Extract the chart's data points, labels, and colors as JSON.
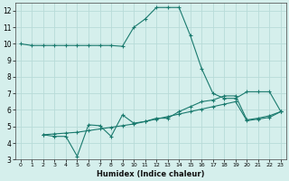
{
  "line1_x": [
    0,
    1,
    2,
    3,
    4,
    5,
    6,
    7,
    8,
    9,
    10,
    11,
    12,
    13,
    14,
    15,
    16,
    17,
    18,
    19,
    20,
    21,
    22,
    23
  ],
  "line1_y": [
    10.0,
    9.9,
    9.9,
    9.9,
    9.9,
    9.9,
    9.9,
    9.9,
    9.9,
    9.85,
    11.0,
    11.5,
    12.2,
    12.2,
    12.2,
    10.5,
    8.5,
    7.0,
    6.7,
    6.7,
    7.1,
    7.1,
    7.1,
    5.9
  ],
  "line2_x": [
    2,
    3,
    4,
    5,
    6,
    7,
    8,
    9,
    10,
    11,
    12,
    13,
    14,
    15,
    16,
    17,
    18,
    19,
    20,
    21,
    22,
    23
  ],
  "line2_y": [
    4.5,
    4.4,
    4.4,
    3.2,
    5.1,
    5.05,
    4.4,
    5.7,
    5.2,
    5.3,
    5.5,
    5.5,
    5.9,
    6.2,
    6.5,
    6.6,
    6.85,
    6.85,
    5.4,
    5.5,
    5.65,
    5.9
  ],
  "line3_x": [
    2,
    3,
    4,
    5,
    6,
    7,
    8,
    9,
    10,
    11,
    12,
    13,
    14,
    15,
    16,
    17,
    18,
    19,
    20,
    21,
    22,
    23
  ],
  "line3_y": [
    4.5,
    4.55,
    4.6,
    4.65,
    4.75,
    4.85,
    4.95,
    5.05,
    5.15,
    5.3,
    5.45,
    5.6,
    5.75,
    5.9,
    6.05,
    6.2,
    6.35,
    6.5,
    5.35,
    5.45,
    5.55,
    5.9
  ],
  "line_color": "#1a7a6e",
  "bg_color": "#d5efec",
  "grid_color": "#b8dbd8",
  "xlabel": "Humidex (Indice chaleur)",
  "xlim": [
    -0.5,
    23.5
  ],
  "ylim": [
    3,
    12.5
  ],
  "yticks": [
    3,
    4,
    5,
    6,
    7,
    8,
    9,
    10,
    11,
    12
  ],
  "xticks": [
    0,
    1,
    2,
    3,
    4,
    5,
    6,
    7,
    8,
    9,
    10,
    11,
    12,
    13,
    14,
    15,
    16,
    17,
    18,
    19,
    20,
    21,
    22,
    23
  ],
  "marker": "+"
}
